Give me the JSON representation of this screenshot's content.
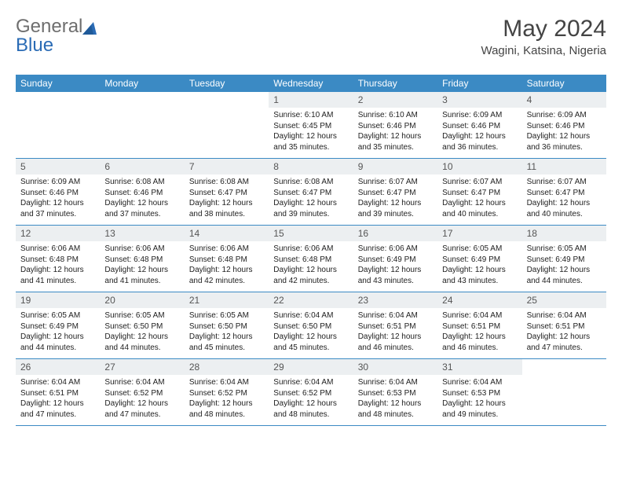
{
  "logo": {
    "text1": "General",
    "text2": "Blue"
  },
  "title": "May 2024",
  "location": "Wagini, Katsina, Nigeria",
  "colors": {
    "header_bg": "#3b8ac4",
    "daynum_bg": "#eceff1",
    "rule": "#3b8ac4",
    "logo_blue": "#2a6bb5",
    "logo_gray": "#6e6e6e"
  },
  "weekdays": [
    "Sunday",
    "Monday",
    "Tuesday",
    "Wednesday",
    "Thursday",
    "Friday",
    "Saturday"
  ],
  "weeks": [
    [
      {
        "empty": true
      },
      {
        "empty": true
      },
      {
        "empty": true
      },
      {
        "n": "1",
        "sr": "6:10 AM",
        "ss": "6:45 PM",
        "dl": "12 hours and 35 minutes."
      },
      {
        "n": "2",
        "sr": "6:10 AM",
        "ss": "6:46 PM",
        "dl": "12 hours and 35 minutes."
      },
      {
        "n": "3",
        "sr": "6:09 AM",
        "ss": "6:46 PM",
        "dl": "12 hours and 36 minutes."
      },
      {
        "n": "4",
        "sr": "6:09 AM",
        "ss": "6:46 PM",
        "dl": "12 hours and 36 minutes."
      }
    ],
    [
      {
        "n": "5",
        "sr": "6:09 AM",
        "ss": "6:46 PM",
        "dl": "12 hours and 37 minutes."
      },
      {
        "n": "6",
        "sr": "6:08 AM",
        "ss": "6:46 PM",
        "dl": "12 hours and 37 minutes."
      },
      {
        "n": "7",
        "sr": "6:08 AM",
        "ss": "6:47 PM",
        "dl": "12 hours and 38 minutes."
      },
      {
        "n": "8",
        "sr": "6:08 AM",
        "ss": "6:47 PM",
        "dl": "12 hours and 39 minutes."
      },
      {
        "n": "9",
        "sr": "6:07 AM",
        "ss": "6:47 PM",
        "dl": "12 hours and 39 minutes."
      },
      {
        "n": "10",
        "sr": "6:07 AM",
        "ss": "6:47 PM",
        "dl": "12 hours and 40 minutes."
      },
      {
        "n": "11",
        "sr": "6:07 AM",
        "ss": "6:47 PM",
        "dl": "12 hours and 40 minutes."
      }
    ],
    [
      {
        "n": "12",
        "sr": "6:06 AM",
        "ss": "6:48 PM",
        "dl": "12 hours and 41 minutes."
      },
      {
        "n": "13",
        "sr": "6:06 AM",
        "ss": "6:48 PM",
        "dl": "12 hours and 41 minutes."
      },
      {
        "n": "14",
        "sr": "6:06 AM",
        "ss": "6:48 PM",
        "dl": "12 hours and 42 minutes."
      },
      {
        "n": "15",
        "sr": "6:06 AM",
        "ss": "6:48 PM",
        "dl": "12 hours and 42 minutes."
      },
      {
        "n": "16",
        "sr": "6:06 AM",
        "ss": "6:49 PM",
        "dl": "12 hours and 43 minutes."
      },
      {
        "n": "17",
        "sr": "6:05 AM",
        "ss": "6:49 PM",
        "dl": "12 hours and 43 minutes."
      },
      {
        "n": "18",
        "sr": "6:05 AM",
        "ss": "6:49 PM",
        "dl": "12 hours and 44 minutes."
      }
    ],
    [
      {
        "n": "19",
        "sr": "6:05 AM",
        "ss": "6:49 PM",
        "dl": "12 hours and 44 minutes."
      },
      {
        "n": "20",
        "sr": "6:05 AM",
        "ss": "6:50 PM",
        "dl": "12 hours and 44 minutes."
      },
      {
        "n": "21",
        "sr": "6:05 AM",
        "ss": "6:50 PM",
        "dl": "12 hours and 45 minutes."
      },
      {
        "n": "22",
        "sr": "6:04 AM",
        "ss": "6:50 PM",
        "dl": "12 hours and 45 minutes."
      },
      {
        "n": "23",
        "sr": "6:04 AM",
        "ss": "6:51 PM",
        "dl": "12 hours and 46 minutes."
      },
      {
        "n": "24",
        "sr": "6:04 AM",
        "ss": "6:51 PM",
        "dl": "12 hours and 46 minutes."
      },
      {
        "n": "25",
        "sr": "6:04 AM",
        "ss": "6:51 PM",
        "dl": "12 hours and 47 minutes."
      }
    ],
    [
      {
        "n": "26",
        "sr": "6:04 AM",
        "ss": "6:51 PM",
        "dl": "12 hours and 47 minutes."
      },
      {
        "n": "27",
        "sr": "6:04 AM",
        "ss": "6:52 PM",
        "dl": "12 hours and 47 minutes."
      },
      {
        "n": "28",
        "sr": "6:04 AM",
        "ss": "6:52 PM",
        "dl": "12 hours and 48 minutes."
      },
      {
        "n": "29",
        "sr": "6:04 AM",
        "ss": "6:52 PM",
        "dl": "12 hours and 48 minutes."
      },
      {
        "n": "30",
        "sr": "6:04 AM",
        "ss": "6:53 PM",
        "dl": "12 hours and 48 minutes."
      },
      {
        "n": "31",
        "sr": "6:04 AM",
        "ss": "6:53 PM",
        "dl": "12 hours and 49 minutes."
      },
      {
        "empty": true
      }
    ]
  ],
  "labels": {
    "sunrise": "Sunrise:",
    "sunset": "Sunset:",
    "daylight": "Daylight:"
  }
}
